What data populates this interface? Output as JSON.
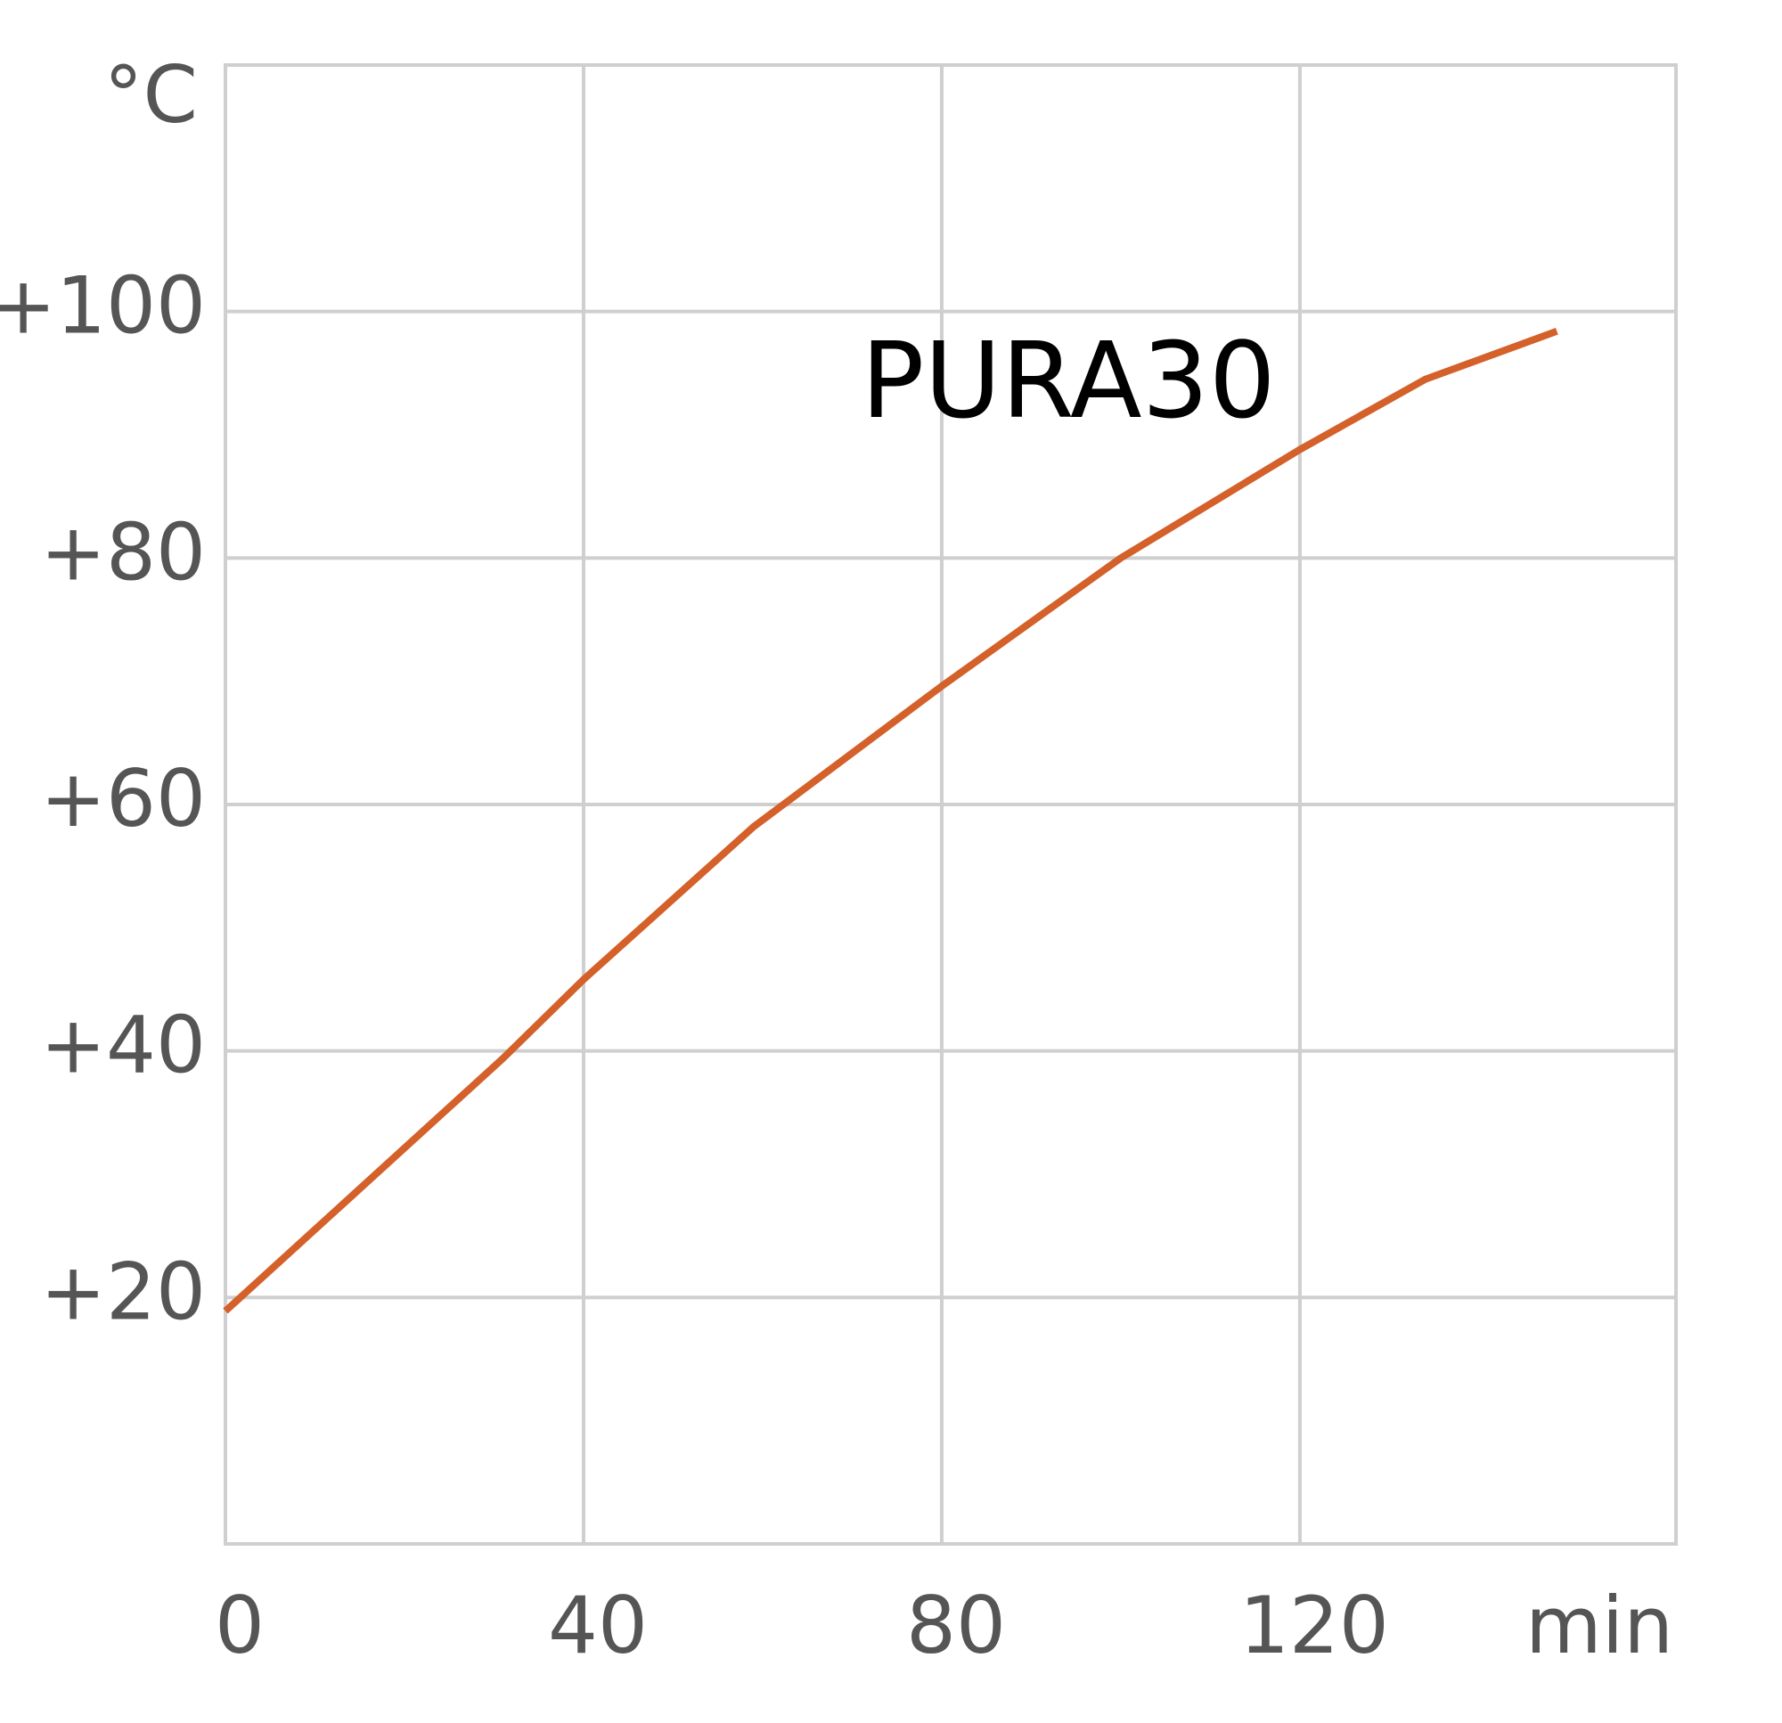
{
  "chart_data": {
    "type": "line",
    "x_label": "min",
    "y_label": "°C",
    "xlim": [
      0,
      162
    ],
    "xticks": [
      0,
      40,
      80,
      120
    ],
    "ylim": [
      0,
      120
    ],
    "yticks": [
      {
        "value": 20,
        "label": "+20"
      },
      {
        "value": 40,
        "label": "+40"
      },
      {
        "value": 60,
        "label": "+60"
      },
      {
        "value": 80,
        "label": "+80"
      },
      {
        "value": 100,
        "label": "+100"
      }
    ],
    "grid": true,
    "series": [
      {
        "name": "PURA30",
        "color": "#d4602a",
        "x": [
          0,
          31,
          40,
          59,
          80,
          100,
          120,
          134,
          148.7
        ],
        "values": [
          18.9,
          39.4,
          45.8,
          58.2,
          69.6,
          80,
          88.8,
          94.5,
          98.4
        ]
      }
    ]
  }
}
